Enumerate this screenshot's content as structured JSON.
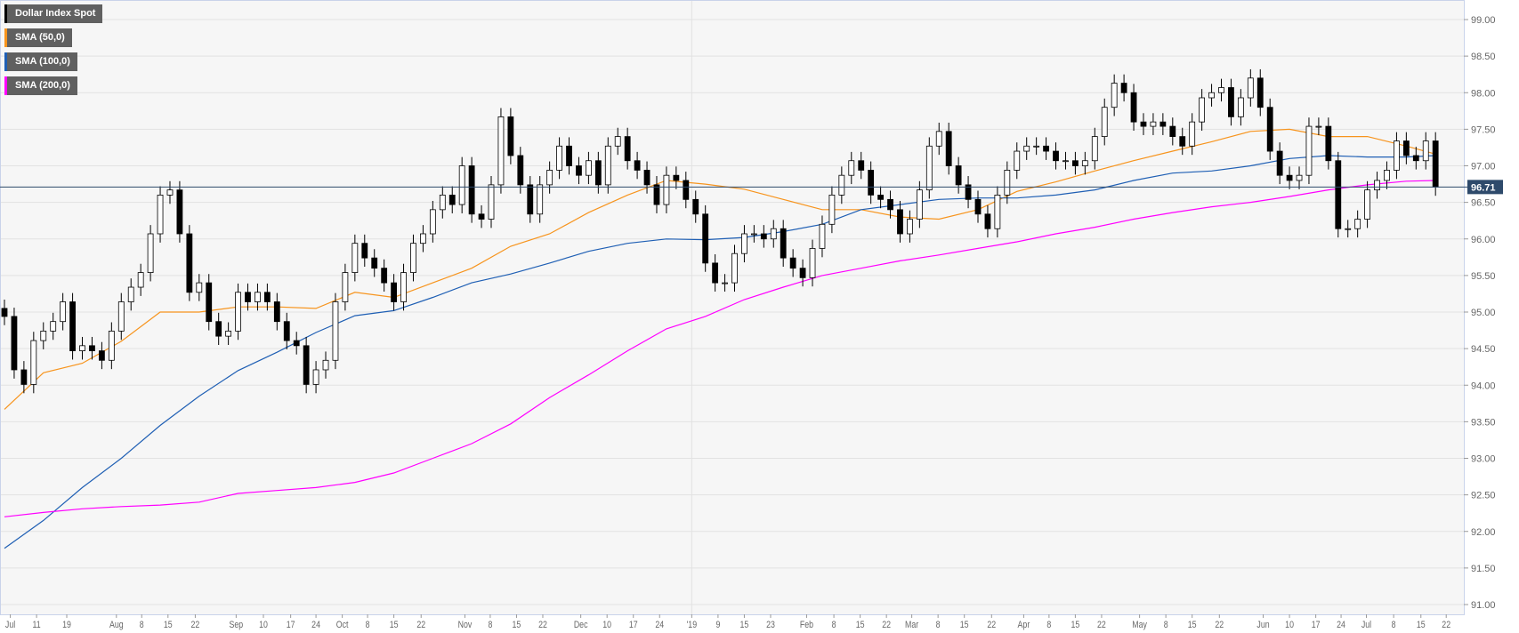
{
  "colors": {
    "candle": "#000000",
    "sma50": "#f7941d",
    "sma100": "#1f5fb4",
    "sma200": "#ff00ff",
    "last_price_bg": "#2e4a6b",
    "grid": "#e2e2e2",
    "plot_bg": "#f6f6f6",
    "border": "#c9d3ea"
  },
  "legend": [
    {
      "label": "Dollar Index Spot",
      "color": "#000000"
    },
    {
      "label": "SMA (50,0)",
      "color": "#f7941d"
    },
    {
      "label": "SMA (100,0)",
      "color": "#1f5fb4"
    },
    {
      "label": "SMA (200,0)",
      "color": "#ff00ff"
    }
  ],
  "chart_data": {
    "type": "candlestick",
    "title": "Dollar Index Spot",
    "last_price": 96.71,
    "last_price_label": "96.71",
    "ylim": [
      91.0,
      99.0
    ],
    "yticks": [
      "91.00",
      "91.50",
      "92.00",
      "92.50",
      "93.00",
      "93.50",
      "94.00",
      "94.50",
      "95.00",
      "95.50",
      "96.00",
      "96.50",
      "97.00",
      "97.50",
      "98.00",
      "98.50",
      "99.00"
    ],
    "xticks": [
      {
        "label": "Jul",
        "bar": 0.6
      },
      {
        "label": "11",
        "bar": 3.3
      },
      {
        "label": "19",
        "bar": 6.4
      },
      {
        "label": "Aug",
        "bar": 11.5
      },
      {
        "label": "8",
        "bar": 14.1
      },
      {
        "label": "15",
        "bar": 16.8
      },
      {
        "label": "22",
        "bar": 19.6
      },
      {
        "label": "Sep",
        "bar": 23.8
      },
      {
        "label": "10",
        "bar": 26.6
      },
      {
        "label": "17",
        "bar": 29.4
      },
      {
        "label": "24",
        "bar": 32.0
      },
      {
        "label": "Oct",
        "bar": 34.7
      },
      {
        "label": "8",
        "bar": 37.3
      },
      {
        "label": "15",
        "bar": 40.0
      },
      {
        "label": "22",
        "bar": 42.8
      },
      {
        "label": "Nov",
        "bar": 47.3
      },
      {
        "label": "8",
        "bar": 49.9
      },
      {
        "label": "15",
        "bar": 52.6
      },
      {
        "label": "22",
        "bar": 55.3
      },
      {
        "label": "Dec",
        "bar": 59.2
      },
      {
        "label": "10",
        "bar": 61.9
      },
      {
        "label": "17",
        "bar": 64.6
      },
      {
        "label": "24",
        "bar": 67.3
      },
      {
        "label": "'19",
        "bar": 70.6
      },
      {
        "label": "9",
        "bar": 73.3
      },
      {
        "label": "15",
        "bar": 76.0
      },
      {
        "label": "23",
        "bar": 78.7
      },
      {
        "label": "Feb",
        "bar": 82.4
      },
      {
        "label": "8",
        "bar": 85.2
      },
      {
        "label": "15",
        "bar": 87.9
      },
      {
        "label": "22",
        "bar": 90.6
      },
      {
        "label": "Mar",
        "bar": 93.2
      },
      {
        "label": "8",
        "bar": 95.9
      },
      {
        "label": "15",
        "bar": 98.6
      },
      {
        "label": "22",
        "bar": 101.4
      },
      {
        "label": "Apr",
        "bar": 104.7
      },
      {
        "label": "8",
        "bar": 107.3
      },
      {
        "label": "15",
        "bar": 110.0
      },
      {
        "label": "22",
        "bar": 112.7
      },
      {
        "label": "May",
        "bar": 116.6
      },
      {
        "label": "8",
        "bar": 119.3
      },
      {
        "label": "15",
        "bar": 122.0
      },
      {
        "label": "22",
        "bar": 124.8
      },
      {
        "label": "Jun",
        "bar": 129.3
      },
      {
        "label": "10",
        "bar": 132.0
      },
      {
        "label": "17",
        "bar": 134.7
      },
      {
        "label": "24",
        "bar": 137.3
      },
      {
        "label": "Jul",
        "bar": 139.9
      },
      {
        "label": "8",
        "bar": 142.7
      },
      {
        "label": "15",
        "bar": 145.5
      },
      {
        "label": "22",
        "bar": 148.1
      }
    ],
    "year_divider_bar": 70.6,
    "first_open": 95.05,
    "closes": [
      94.94,
      94.21,
      94.01,
      94.61,
      94.74,
      94.87,
      95.14,
      94.47,
      94.54,
      94.47,
      94.34,
      94.74,
      95.14,
      95.34,
      95.54,
      96.07,
      96.6,
      96.67,
      96.07,
      95.27,
      95.4,
      94.87,
      94.67,
      94.74,
      95.27,
      95.14,
      95.27,
      95.14,
      94.87,
      94.61,
      94.54,
      94.01,
      94.21,
      94.34,
      95.14,
      95.54,
      95.94,
      95.74,
      95.6,
      95.4,
      95.14,
      95.54,
      95.94,
      96.07,
      96.4,
      96.6,
      96.47,
      97.0,
      96.34,
      96.27,
      96.74,
      97.67,
      97.14,
      96.74,
      96.34,
      96.74,
      96.94,
      97.27,
      97.0,
      96.87,
      97.07,
      96.74,
      97.27,
      97.4,
      97.07,
      96.94,
      96.74,
      96.47,
      96.87,
      96.8,
      96.54,
      96.34,
      95.67,
      95.4,
      95.4,
      95.8,
      96.07,
      96.07,
      96.0,
      96.14,
      95.74,
      95.6,
      95.47,
      95.87,
      96.2,
      96.6,
      96.87,
      97.07,
      96.94,
      96.6,
      96.54,
      96.4,
      96.07,
      96.27,
      96.67,
      97.27,
      97.47,
      97.0,
      96.74,
      96.54,
      96.34,
      96.14,
      96.6,
      96.94,
      97.2,
      97.27,
      97.27,
      97.2,
      97.07,
      97.07,
      97.0,
      97.07,
      97.4,
      97.8,
      98.13,
      98.0,
      97.6,
      97.54,
      97.6,
      97.54,
      97.4,
      97.27,
      97.6,
      97.93,
      98.0,
      98.07,
      97.67,
      97.93,
      98.2,
      97.8,
      97.2,
      96.87,
      96.8,
      96.87,
      97.54,
      97.54,
      97.07,
      96.14,
      96.14,
      96.27,
      96.67,
      96.8,
      96.94,
      97.34,
      97.14,
      97.07,
      97.34,
      96.71
    ],
    "sma_step_bars": 4,
    "series": [
      {
        "name": "SMA (50,0)",
        "color": "#f7941d",
        "values": [
          93.67,
          94.17,
          94.3,
          94.6,
          95.0,
          95.0,
          95.07,
          95.07,
          95.05,
          95.27,
          95.2,
          95.4,
          95.6,
          95.9,
          96.07,
          96.36,
          96.6,
          96.8,
          96.75,
          96.68,
          96.54,
          96.4,
          96.4,
          96.3,
          96.27,
          96.4,
          96.65,
          96.78,
          96.93,
          97.07,
          97.2,
          97.33,
          97.47,
          97.5,
          97.4,
          97.4,
          97.27,
          97.16
        ]
      },
      {
        "name": "SMA (100,0)",
        "color": "#1f5fb4",
        "values": [
          91.77,
          92.15,
          92.6,
          93.0,
          93.45,
          93.85,
          94.2,
          94.45,
          94.72,
          94.95,
          95.02,
          95.2,
          95.4,
          95.52,
          95.67,
          95.83,
          95.94,
          96.0,
          95.99,
          96.02,
          96.1,
          96.2,
          96.4,
          96.47,
          96.54,
          96.56,
          96.56,
          96.6,
          96.67,
          96.8,
          96.9,
          96.93,
          97.0,
          97.1,
          97.14,
          97.12,
          97.12,
          97.14
        ]
      },
      {
        "name": "SMA (200,0)",
        "color": "#ff00ff",
        "values": [
          92.2,
          92.26,
          92.31,
          92.34,
          92.36,
          92.4,
          92.52,
          92.56,
          92.6,
          92.67,
          92.8,
          93.0,
          93.2,
          93.47,
          93.83,
          94.14,
          94.47,
          94.77,
          94.94,
          95.17,
          95.34,
          95.5,
          95.6,
          95.7,
          95.78,
          95.87,
          95.96,
          96.07,
          96.16,
          96.27,
          96.36,
          96.44,
          96.5,
          96.58,
          96.67,
          96.74,
          96.79,
          96.8
        ]
      }
    ]
  }
}
